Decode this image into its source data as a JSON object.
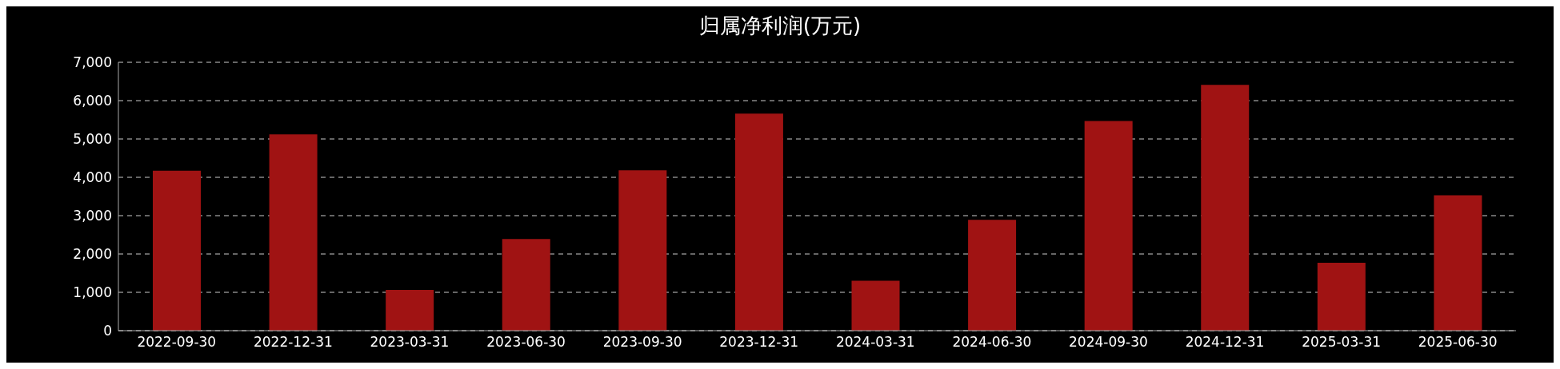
{
  "chart_data": {
    "type": "bar",
    "title": "归属净利润(万元)",
    "categories": [
      "2022-09-30",
      "2022-12-31",
      "2023-03-31",
      "2023-06-30",
      "2023-09-30",
      "2023-12-31",
      "2024-03-31",
      "2024-06-30",
      "2024-09-30",
      "2024-12-31",
      "2025-03-31",
      "2025-06-30"
    ],
    "values": [
      4170,
      5120,
      1060,
      2390,
      4180,
      5660,
      1300,
      2890,
      5470,
      6410,
      1770,
      3530
    ],
    "color": "#a01313",
    "ylim": [
      0,
      7000
    ],
    "yticks": [
      {
        "value": 0,
        "label": "0"
      },
      {
        "value": 1000,
        "label": "1,000"
      },
      {
        "value": 2000,
        "label": "2,000"
      },
      {
        "value": 3000,
        "label": "3,000"
      },
      {
        "value": 4000,
        "label": "4,000"
      },
      {
        "value": 5000,
        "label": "5,000"
      },
      {
        "value": 6000,
        "label": "6,000"
      },
      {
        "value": 7000,
        "label": "7,000"
      }
    ],
    "grid": "y"
  }
}
